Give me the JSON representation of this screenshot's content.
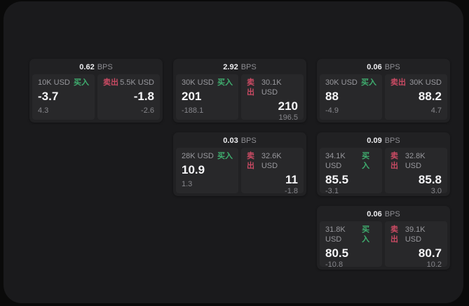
{
  "colors": {
    "outer_bg": "#0a0a0a",
    "panel_bg": "#1a1a1c",
    "card_bg": "#212123",
    "subpanel_bg": "#28282a",
    "text_primary": "#f5f5f7",
    "text_secondary": "#98989d",
    "text_tertiary": "#86868b",
    "buy_green": "#3fae6f",
    "sell_red": "#c94a63"
  },
  "labels": {
    "bps_suffix": "BPS",
    "buy": "买入",
    "sell": "卖出"
  },
  "cards": [
    {
      "bps": "0.62",
      "buy": {
        "size": "10K USD",
        "price": "-3.7",
        "delta": "4.3"
      },
      "sell": {
        "size": "5.5K USD",
        "price": "-1.8",
        "delta": "-2.6"
      }
    },
    {
      "bps": "2.92",
      "buy": {
        "size": "30K USD",
        "price": "201",
        "delta": "-188.1"
      },
      "sell": {
        "size": "30.1K USD",
        "price": "210",
        "delta": "196.5"
      }
    },
    {
      "bps": "0.06",
      "buy": {
        "size": "30K USD",
        "price": "88",
        "delta": "-4.9"
      },
      "sell": {
        "size": "30K USD",
        "price": "88.2",
        "delta": "4.7"
      }
    },
    {
      "bps": "0.03",
      "buy": {
        "size": "28K USD",
        "price": "10.9",
        "delta": "1.3"
      },
      "sell": {
        "size": "32.6K USD",
        "price": "11",
        "delta": "-1.8"
      }
    },
    {
      "bps": "0.09",
      "buy": {
        "size": "34.1K USD",
        "price": "85.5",
        "delta": "-3.1"
      },
      "sell": {
        "size": "32.8K USD",
        "price": "85.8",
        "delta": "3.0"
      }
    },
    {
      "bps": "0.06",
      "buy": {
        "size": "31.8K USD",
        "price": "80.5",
        "delta": "-10.8"
      },
      "sell": {
        "size": "39.1K USD",
        "price": "80.7",
        "delta": "10.2"
      }
    }
  ]
}
